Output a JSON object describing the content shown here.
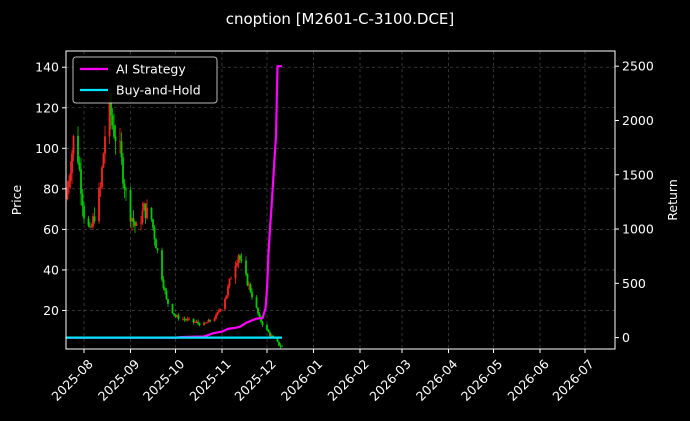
{
  "chart_data": {
    "type": "line",
    "title": "cnoption [M2601-C-3100.DCE]",
    "left_axis": {
      "label": "Price",
      "ylim": [
        1,
        148
      ],
      "ticks": [
        20,
        40,
        60,
        80,
        100,
        120,
        140
      ]
    },
    "right_axis": {
      "label": "Return",
      "ylim": [
        -105,
        2640
      ],
      "ticks": [
        0,
        500,
        1000,
        1500,
        2000,
        2500
      ]
    },
    "x_axis": {
      "start": "2025-07-20",
      "end": "2026-07-21",
      "ticks": [
        "2025-08",
        "2025-09",
        "2025-10",
        "2025-11",
        "2025-12",
        "2026-01",
        "2026-02",
        "2026-03",
        "2026-04",
        "2026-05",
        "2026-06",
        "2026-07"
      ]
    },
    "grid": true,
    "legend_position": "top-left",
    "colors": {
      "up_candle": "#ff2222",
      "down_candle": "#00cc00",
      "strategy": "#ff00ff",
      "buy_hold": "#00e5ff"
    },
    "series": [
      {
        "name": "AI Strategy",
        "axis": "right",
        "points": [
          [
            "2025-07-20",
            0
          ],
          [
            "2025-08-15",
            0
          ],
          [
            "2025-09-15",
            0
          ],
          [
            "2025-10-01",
            0
          ],
          [
            "2025-10-05",
            5
          ],
          [
            "2025-10-12",
            8
          ],
          [
            "2025-10-20",
            10
          ],
          [
            "2025-10-26",
            40
          ],
          [
            "2025-11-01",
            55
          ],
          [
            "2025-11-05",
            80
          ],
          [
            "2025-11-10",
            90
          ],
          [
            "2025-11-13",
            100
          ],
          [
            "2025-11-17",
            135
          ],
          [
            "2025-11-24",
            175
          ],
          [
            "2025-11-28",
            180
          ],
          [
            "2025-11-30",
            270
          ],
          [
            "2025-12-01",
            440
          ],
          [
            "2025-12-02",
            780
          ],
          [
            "2025-12-03",
            1000
          ],
          [
            "2025-12-04",
            1200
          ],
          [
            "2025-12-05",
            1420
          ],
          [
            "2025-12-06",
            1650
          ],
          [
            "2025-12-07",
            1850
          ],
          [
            "2025-12-08",
            2500
          ],
          [
            "2025-12-11",
            2500
          ]
        ]
      },
      {
        "name": "Buy-and-Hold",
        "axis": "right",
        "points": [
          [
            "2025-07-20",
            0
          ],
          [
            "2025-12-11",
            0
          ]
        ]
      }
    ],
    "candles": {
      "axis": "left",
      "keypoints": [
        [
          "2025-07-20",
          75
        ],
        [
          "2025-07-26",
          110
        ],
        [
          "2025-08-01",
          68
        ],
        [
          "2025-08-05",
          58
        ],
        [
          "2025-08-12",
          80
        ],
        [
          "2025-08-17",
          125
        ],
        [
          "2025-08-20",
          112
        ],
        [
          "2025-08-25",
          98
        ],
        [
          "2025-08-30",
          72
        ],
        [
          "2025-09-05",
          60
        ],
        [
          "2025-09-10",
          70
        ],
        [
          "2025-09-15",
          65
        ],
        [
          "2025-09-20",
          45
        ],
        [
          "2025-09-25",
          25
        ],
        [
          "2025-10-01",
          17
        ],
        [
          "2025-10-10",
          15
        ],
        [
          "2025-10-20",
          13
        ],
        [
          "2025-10-28",
          17
        ],
        [
          "2025-11-04",
          28
        ],
        [
          "2025-11-08",
          40
        ],
        [
          "2025-11-12",
          48
        ],
        [
          "2025-11-15",
          40
        ],
        [
          "2025-11-20",
          30
        ],
        [
          "2025-11-26",
          16
        ],
        [
          "2025-12-01",
          10
        ],
        [
          "2025-12-06",
          5
        ],
        [
          "2025-12-11",
          2
        ]
      ]
    }
  }
}
